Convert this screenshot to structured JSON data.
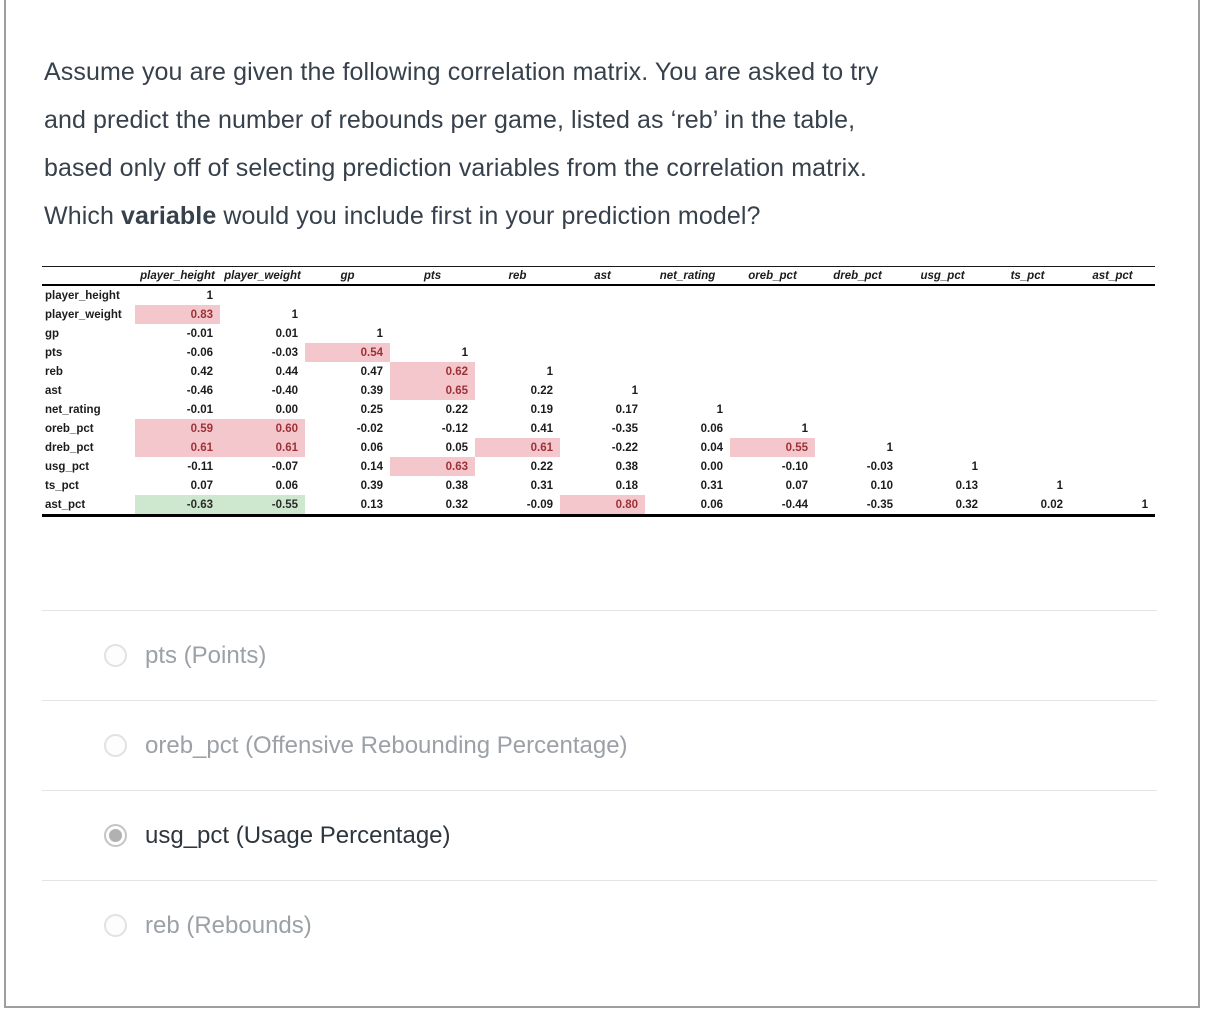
{
  "question": {
    "lines": [
      [
        {
          "t": "Assume you are given the following correlation matrix. You are asked to try",
          "b": false
        }
      ],
      [
        {
          "t": "and predict the number of rebounds per game, listed as ‘reb’ in the table,",
          "b": false
        }
      ],
      [
        {
          "t": "based only off of selecting prediction variables from the correlation matrix.",
          "b": false
        }
      ],
      [
        {
          "t": "Which ",
          "b": false
        },
        {
          "t": "variable",
          "b": true
        },
        {
          "t": " would you include first in your prediction model?",
          "b": false
        }
      ]
    ]
  },
  "matrix": {
    "columns": [
      "player_height",
      "player_weight",
      "gp",
      "pts",
      "reb",
      "ast",
      "net_rating",
      "oreb_pct",
      "dreb_pct",
      "usg_pct",
      "ts_pct",
      "ast_pct"
    ],
    "rows": [
      {
        "label": "player_height",
        "values": [
          "1"
        ],
        "hl": {}
      },
      {
        "label": "player_weight",
        "values": [
          "0.83",
          "1"
        ],
        "hl": {
          "0": "pink"
        }
      },
      {
        "label": "gp",
        "values": [
          "-0.01",
          "0.01",
          "1"
        ],
        "hl": {}
      },
      {
        "label": "pts",
        "values": [
          "-0.06",
          "-0.03",
          "0.54",
          "1"
        ],
        "hl": {
          "2": "pink"
        }
      },
      {
        "label": "reb",
        "values": [
          "0.42",
          "0.44",
          "0.47",
          "0.62",
          "1"
        ],
        "hl": {
          "3": "pink"
        }
      },
      {
        "label": "ast",
        "values": [
          "-0.46",
          "-0.40",
          "0.39",
          "0.65",
          "0.22",
          "1"
        ],
        "hl": {
          "3": "pink"
        }
      },
      {
        "label": "net_rating",
        "values": [
          "-0.01",
          "0.00",
          "0.25",
          "0.22",
          "0.19",
          "0.17",
          "1"
        ],
        "hl": {}
      },
      {
        "label": "oreb_pct",
        "values": [
          "0.59",
          "0.60",
          "-0.02",
          "-0.12",
          "0.41",
          "-0.35",
          "0.06",
          "1"
        ],
        "hl": {
          "0": "pink",
          "1": "pink"
        }
      },
      {
        "label": "dreb_pct",
        "values": [
          "0.61",
          "0.61",
          "0.06",
          "0.05",
          "0.61",
          "-0.22",
          "0.04",
          "0.55",
          "1"
        ],
        "hl": {
          "0": "pink",
          "1": "pink",
          "4": "pink",
          "7": "pink"
        }
      },
      {
        "label": "usg_pct",
        "values": [
          "-0.11",
          "-0.07",
          "0.14",
          "0.63",
          "0.22",
          "0.38",
          "0.00",
          "-0.10",
          "-0.03",
          "1"
        ],
        "hl": {
          "3": "pink"
        }
      },
      {
        "label": "ts_pct",
        "values": [
          "0.07",
          "0.06",
          "0.39",
          "0.38",
          "0.31",
          "0.18",
          "0.31",
          "0.07",
          "0.10",
          "0.13",
          "1"
        ],
        "hl": {}
      },
      {
        "label": "ast_pct",
        "values": [
          "-0.63",
          "-0.55",
          "0.13",
          "0.32",
          "-0.09",
          "0.80",
          "0.06",
          "-0.44",
          "-0.35",
          "0.32",
          "0.02",
          "1"
        ],
        "hl": {
          "0": "green",
          "1": "green",
          "5": "pink"
        }
      }
    ]
  },
  "options": [
    {
      "label": "pts (Points)",
      "selected": false
    },
    {
      "label": "oreb_pct (Offensive Rebounding Percentage)",
      "selected": false
    },
    {
      "label": "usg_pct (Usage Percentage)",
      "selected": true
    },
    {
      "label": "reb (Rebounds)",
      "selected": false
    }
  ],
  "colors": {
    "highlight_pink_bg": "#f4c7cd",
    "highlight_pink_text": "#9c3238",
    "highlight_green_bg": "#cde8ce",
    "question_text": "#37414c",
    "option_text_gray": "#9ba1a6",
    "option_text_selected": "#2e363d",
    "card_border": "#9e9e9e",
    "divider": "#e4e4e4"
  }
}
